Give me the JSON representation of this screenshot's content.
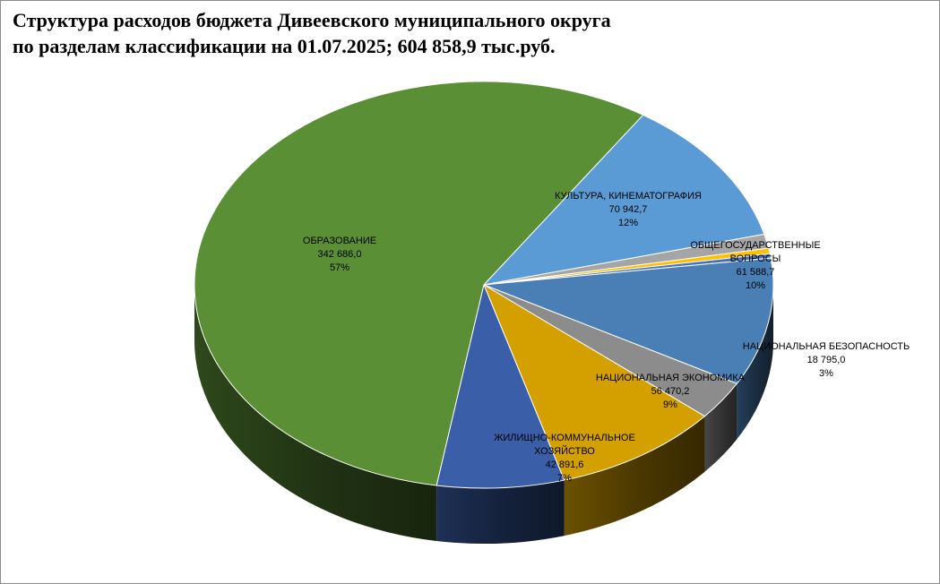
{
  "title_lines": [
    "Структура расходов бюджета Дивеевского муниципального округа",
    "по разделам классификации на 01.07.2025; 604 858,9 тыс.руб."
  ],
  "chart_data": {
    "type": "pie",
    "style": "3d",
    "total": 604858.9,
    "unit": "тыс.руб.",
    "legend": "none",
    "slices": [
      {
        "name": "ОБРАЗОВАНИЕ",
        "label_lines": [
          "ОБРАЗОВАНИЕ"
        ],
        "value": 342686.0,
        "value_text": "342 686,0",
        "pct_text": "57%",
        "color": "#5b8f36",
        "labeled": true
      },
      {
        "name": "КУЛЬТУРА, КИНЕМАТОГРАФИЯ",
        "label_lines": [
          "КУЛЬТУРА, КИНЕМАТОГРАФИЯ"
        ],
        "value": 70942.7,
        "value_text": "70 942,7",
        "pct_text": "12%",
        "color": "#5b9bd5",
        "labeled": true
      },
      {
        "name": "",
        "value": 6804.0,
        "color": "#a5a5a5",
        "labeled": false
      },
      {
        "name": "",
        "value": 2600.0,
        "color": "#ffc000",
        "labeled": false
      },
      {
        "name": "",
        "value": 2080.0,
        "color": "#4472c4",
        "labeled": false
      },
      {
        "name": "ОБЩЕГОСУДАРСТВЕННЫЕ ВОПРОСЫ",
        "label_lines": [
          "ОБЩЕГОСУДАРСТВЕННЫЕ",
          "ВОПРОСЫ"
        ],
        "value": 61588.7,
        "value_text": "61 588,7",
        "pct_text": "10%",
        "color": "#4a7fb5",
        "labeled": true
      },
      {
        "name": "НАЦИОНАЛЬНАЯ БЕЗОПАСНОСТЬ",
        "label_lines": [
          "НАЦИОНАЛЬНАЯ БЕЗОПАСНОСТЬ"
        ],
        "value": 18795.0,
        "value_text": "18 795,0",
        "pct_text": "3%",
        "color": "#8c8c8c",
        "labeled": true
      },
      {
        "name": "НАЦИОНАЛЬНАЯ ЭКОНОМИКА",
        "label_lines": [
          "НАЦИОНАЛЬНАЯ ЭКОНОМИКА"
        ],
        "value": 56470.2,
        "value_text": "56 470,2",
        "pct_text": "9%",
        "color": "#d4a000",
        "labeled": true
      },
      {
        "name": "ЖИЛИЩНО-КОММУНАЛЬНОЕ ХОЗЯЙСТВО",
        "label_lines": [
          "ЖИЛИЩНО-КОММУНАЛЬНОЕ",
          "ХОЗЯЙСТВО"
        ],
        "value": 42891.6,
        "value_text": "42 891,6",
        "pct_text": "7%",
        "color": "#3a5fa8",
        "labeled": true
      }
    ]
  }
}
